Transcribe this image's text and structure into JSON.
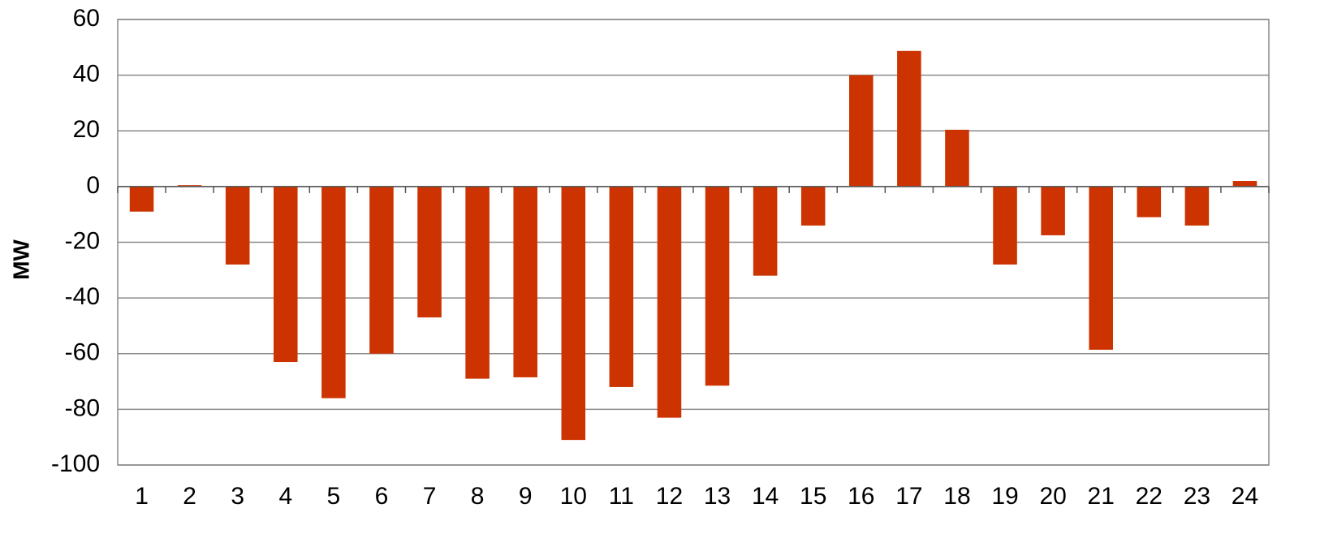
{
  "chart_data": {
    "type": "bar",
    "y_label": "MW",
    "categories": [
      "1",
      "2",
      "3",
      "4",
      "5",
      "6",
      "7",
      "8",
      "9",
      "10",
      "11",
      "12",
      "13",
      "14",
      "15",
      "16",
      "17",
      "18",
      "19",
      "20",
      "21",
      "22",
      "23",
      "24"
    ],
    "values": [
      -9,
      0.5,
      -28,
      -63,
      -76,
      -60,
      -47,
      -69,
      -68.5,
      -91,
      -72,
      -83,
      -71.5,
      -32,
      -14,
      40,
      48.7,
      20.4,
      -28,
      -17.5,
      -58.6,
      -11,
      -14,
      2
    ],
    "color": "#cc3300",
    "ylim": [
      -100,
      60
    ],
    "yticks": [
      -100,
      -80,
      -60,
      -40,
      -20,
      0,
      20,
      40,
      60
    ],
    "grid": true
  }
}
